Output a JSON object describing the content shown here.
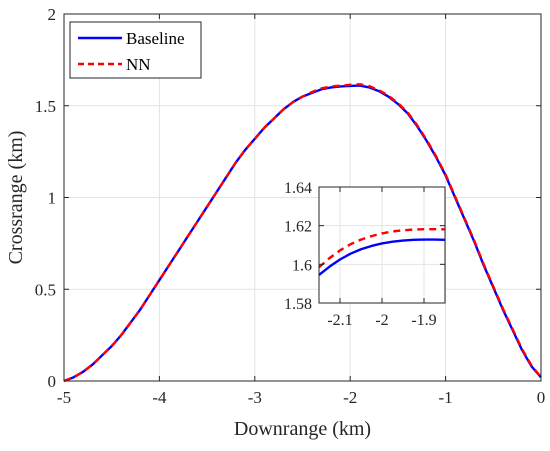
{
  "chart_data": [
    {
      "type": "line",
      "title": "",
      "xlabel": "Downrange (km)",
      "ylabel": "Crossrange (km)",
      "xlim": [
        -5,
        0
      ],
      "ylim": [
        0,
        2
      ],
      "xticks": [
        -5,
        -4,
        -3,
        -2,
        -1,
        0
      ],
      "yticks": [
        0,
        0.5,
        1,
        1.5,
        2
      ],
      "xtick_labels": [
        "-5",
        "-4",
        "-3",
        "-2",
        "-1",
        "0"
      ],
      "ytick_labels": [
        "0",
        "0.5",
        "1",
        "1.5",
        "2"
      ],
      "grid": true,
      "legend_position": "top-left",
      "legend": [
        "Baseline",
        "NN"
      ],
      "series": [
        {
          "name": "Baseline",
          "color": "#0000ff",
          "style": "solid",
          "x": [
            -5.0,
            -4.9,
            -4.8,
            -4.7,
            -4.6,
            -4.5,
            -4.4,
            -4.3,
            -4.2,
            -4.1,
            -4.0,
            -3.9,
            -3.8,
            -3.7,
            -3.6,
            -3.5,
            -3.4,
            -3.3,
            -3.2,
            -3.1,
            -3.0,
            -2.9,
            -2.8,
            -2.7,
            -2.6,
            -2.5,
            -2.4,
            -2.3,
            -2.2,
            -2.1,
            -2.0,
            -1.9,
            -1.8,
            -1.7,
            -1.6,
            -1.5,
            -1.4,
            -1.3,
            -1.2,
            -1.1,
            -1.0,
            -0.9,
            -0.8,
            -0.7,
            -0.6,
            -0.5,
            -0.4,
            -0.3,
            -0.2,
            -0.1,
            0.0
          ],
          "y": [
            0.0,
            0.02,
            0.05,
            0.09,
            0.14,
            0.19,
            0.25,
            0.32,
            0.39,
            0.47,
            0.55,
            0.63,
            0.71,
            0.79,
            0.87,
            0.95,
            1.03,
            1.11,
            1.19,
            1.26,
            1.32,
            1.38,
            1.43,
            1.48,
            1.52,
            1.55,
            1.57,
            1.59,
            1.6,
            1.605,
            1.608,
            1.61,
            1.6,
            1.58,
            1.55,
            1.51,
            1.46,
            1.39,
            1.31,
            1.22,
            1.12,
            1.0,
            0.88,
            0.76,
            0.63,
            0.51,
            0.39,
            0.28,
            0.17,
            0.08,
            0.02
          ]
        },
        {
          "name": "NN",
          "color": "#ff0000",
          "style": "dashed",
          "x": [
            -5.0,
            -4.9,
            -4.8,
            -4.7,
            -4.6,
            -4.5,
            -4.4,
            -4.3,
            -4.2,
            -4.1,
            -4.0,
            -3.9,
            -3.8,
            -3.7,
            -3.6,
            -3.5,
            -3.4,
            -3.3,
            -3.2,
            -3.1,
            -3.0,
            -2.9,
            -2.8,
            -2.7,
            -2.6,
            -2.5,
            -2.4,
            -2.3,
            -2.2,
            -2.1,
            -2.0,
            -1.9,
            -1.8,
            -1.7,
            -1.6,
            -1.5,
            -1.4,
            -1.3,
            -1.2,
            -1.1,
            -1.0,
            -0.9,
            -0.8,
            -0.7,
            -0.6,
            -0.5,
            -0.4,
            -0.3,
            -0.2,
            -0.1,
            0.0
          ],
          "y": [
            0.0,
            0.02,
            0.05,
            0.09,
            0.14,
            0.19,
            0.25,
            0.32,
            0.39,
            0.47,
            0.55,
            0.63,
            0.71,
            0.79,
            0.87,
            0.95,
            1.03,
            1.11,
            1.19,
            1.26,
            1.32,
            1.38,
            1.43,
            1.48,
            1.52,
            1.55,
            1.575,
            1.595,
            1.605,
            1.61,
            1.614,
            1.617,
            1.607,
            1.585,
            1.555,
            1.515,
            1.465,
            1.395,
            1.315,
            1.225,
            1.125,
            1.005,
            0.885,
            0.765,
            0.635,
            0.515,
            0.395,
            0.285,
            0.175,
            0.085,
            0.02
          ]
        }
      ]
    },
    {
      "type": "line",
      "title": "",
      "xlabel": "",
      "ylabel": "",
      "xlim": [
        -2.15,
        -1.85
      ],
      "ylim": [
        1.58,
        1.64
      ],
      "xticks": [
        -2.1,
        -2.0,
        -1.9
      ],
      "yticks": [
        1.58,
        1.6,
        1.62,
        1.64
      ],
      "xtick_labels": [
        "-2.1",
        "-2",
        "-1.9"
      ],
      "ytick_labels": [
        "1.58",
        "1.6",
        "1.62",
        "1.64"
      ],
      "grid": true,
      "series": [
        {
          "name": "Baseline",
          "color": "#0000ff",
          "style": "solid",
          "x": [
            -2.15,
            -2.125,
            -2.1,
            -2.075,
            -2.05,
            -2.025,
            -2.0,
            -1.975,
            -1.95,
            -1.925,
            -1.9,
            -1.875,
            -1.85
          ],
          "y": [
            1.5945,
            1.5988,
            1.6025,
            1.6055,
            1.6078,
            1.6095,
            1.6108,
            1.6117,
            1.6123,
            1.6127,
            1.6128,
            1.6128,
            1.6127
          ]
        },
        {
          "name": "NN",
          "color": "#ff0000",
          "style": "dashed",
          "x": [
            -2.15,
            -2.125,
            -2.1,
            -2.075,
            -2.05,
            -2.025,
            -2.0,
            -1.975,
            -1.95,
            -1.925,
            -1.9,
            -1.875,
            -1.85
          ],
          "y": [
            1.5985,
            1.6032,
            1.6072,
            1.6104,
            1.6128,
            1.6146,
            1.616,
            1.617,
            1.6176,
            1.618,
            1.6182,
            1.6182,
            1.6181
          ]
        }
      ]
    }
  ]
}
